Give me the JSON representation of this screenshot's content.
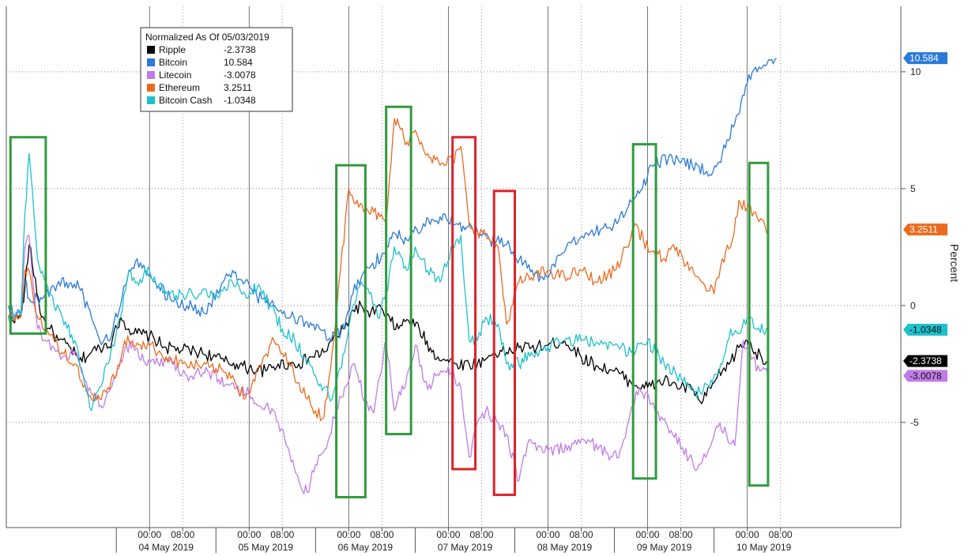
{
  "chart_data": {
    "type": "line",
    "ylabel": "Percent",
    "ylim": [
      -9.5,
      12.8
    ],
    "y_ticks": [
      10,
      5,
      0,
      -5
    ],
    "grid": true,
    "legend": {
      "title": "Normalized As Of 05/03/2019",
      "placement": "top-left"
    },
    "x_tick_labels": [
      "00:00",
      "08:00",
      "00:00",
      "08:00",
      "00:00",
      "08:00",
      "00:00",
      "08:00",
      "00:00",
      "08:00",
      "00:00",
      "08:00",
      "00:00",
      "08:00"
    ],
    "x_tick_hours": [
      24,
      32,
      48,
      56,
      72,
      80,
      96,
      104,
      120,
      128,
      144,
      152,
      168,
      176
    ],
    "x_range_hours": [
      -10.5,
      205
    ],
    "day_labels": [
      {
        "label": "04 May 2019",
        "center_hour": 28
      },
      {
        "label": "05 May 2019",
        "center_hour": 52
      },
      {
        "label": "06 May 2019",
        "center_hour": 76
      },
      {
        "label": "07 May 2019",
        "center_hour": 100
      },
      {
        "label": "08 May 2019",
        "center_hour": 124
      },
      {
        "label": "09 May 2019",
        "center_hour": 148
      },
      {
        "label": "10 May 2019",
        "center_hour": 172
      }
    ],
    "day_boundaries_hours": [
      16,
      40,
      64,
      88,
      112,
      136,
      160
    ],
    "series": [
      {
        "name": "Ripple",
        "value_label": "-2.3738",
        "color": "#000000",
        "last": -2.3738,
        "hours": [
          -10,
          -7,
          -6,
          -5,
          -2,
          0,
          2,
          5,
          7,
          10,
          12,
          15,
          17,
          19,
          21,
          24,
          28,
          32,
          36,
          40,
          42,
          45,
          48,
          52,
          55,
          58,
          60,
          63,
          66,
          68,
          71,
          73,
          75,
          77,
          79,
          81,
          84,
          86,
          89,
          92,
          95,
          98,
          101,
          103,
          105,
          107,
          110,
          113,
          116,
          120,
          124,
          128,
          132,
          136,
          140,
          144,
          148,
          152,
          155,
          157,
          160,
          162,
          164,
          166,
          168,
          170,
          173
        ],
        "values": [
          -0.5,
          -0.5,
          0.8,
          2.6,
          -0.5,
          -1.0,
          -1.5,
          -1.8,
          -2.4,
          -2.0,
          -1.8,
          -1.5,
          -0.5,
          -1.0,
          -1.2,
          -1.3,
          -1.8,
          -1.9,
          -2.0,
          -2.2,
          -2.4,
          -2.5,
          -2.7,
          -2.8,
          -2.5,
          -2.5,
          -2.5,
          -2.2,
          -2.0,
          -1.5,
          -1.0,
          -0.2,
          0.0,
          -0.5,
          0.0,
          -0.5,
          -1.0,
          -0.6,
          -1.0,
          -2.0,
          -2.3,
          -2.5,
          -2.5,
          -2.5,
          -2.3,
          -2.0,
          -2.0,
          -1.8,
          -1.8,
          -1.7,
          -1.5,
          -2.2,
          -2.6,
          -2.8,
          -3.3,
          -3.5,
          -3.2,
          -3.5,
          -3.6,
          -4.2,
          -3.3,
          -2.8,
          -2.4,
          -1.8,
          -1.5,
          -2.0,
          -2.4
        ]
      },
      {
        "name": "Bitcoin",
        "value_label": "10.584",
        "color": "#2a7ad7",
        "last": 10.584,
        "hours": [
          -10,
          -7,
          -6,
          -5,
          -3,
          -1,
          1,
          4,
          7,
          10,
          12,
          14,
          17,
          19,
          21,
          23,
          25,
          29,
          33,
          37,
          41,
          44,
          47,
          49,
          51,
          54,
          58,
          62,
          65,
          67,
          71,
          73,
          75,
          77,
          80,
          83,
          86,
          90,
          94,
          98,
          102,
          106,
          110,
          115,
          119,
          124,
          129,
          133,
          137,
          139,
          142,
          145,
          149,
          152,
          156,
          159,
          162,
          165,
          168,
          170,
          172,
          175
        ],
        "values": [
          0.0,
          -0.4,
          1.0,
          0.3,
          0.3,
          0.5,
          0.8,
          1.0,
          0.8,
          -0.5,
          -1.5,
          -1.5,
          0.0,
          1.5,
          2.0,
          1.5,
          1.0,
          0.3,
          0.0,
          -0.3,
          0.7,
          1.5,
          1.0,
          0.5,
          0.3,
          0.0,
          -0.5,
          -0.7,
          -1.0,
          -1.5,
          -1.0,
          0.5,
          1.2,
          1.6,
          2.2,
          3.1,
          2.8,
          3.5,
          3.8,
          3.5,
          3.2,
          2.8,
          2.6,
          1.6,
          1.1,
          2.3,
          3.1,
          3.3,
          3.6,
          4.1,
          4.8,
          6.0,
          6.3,
          6.1,
          6.0,
          5.6,
          6.5,
          7.8,
          9.5,
          10.2,
          10.3,
          10.6
        ]
      },
      {
        "name": "Litecoin",
        "value_label": "-3.0078",
        "color": "#c07be8",
        "last": -3.0078,
        "hours": [
          -10,
          -7,
          -6,
          -5,
          -3,
          -1,
          1,
          3,
          6,
          8,
          10,
          13,
          17,
          20,
          23,
          28,
          33,
          38,
          43,
          48,
          52,
          55,
          57,
          60,
          62,
          64,
          67,
          69,
          71,
          73,
          76,
          78,
          81,
          83,
          86,
          88,
          91,
          93,
          96,
          99,
          101,
          103,
          105,
          108,
          110,
          113,
          115,
          118,
          120,
          125,
          130,
          134,
          137,
          139,
          142,
          145,
          150,
          154,
          156,
          158,
          161,
          163,
          165,
          167,
          169,
          171,
          173
        ],
        "values": [
          -0.5,
          -0.5,
          2.5,
          3.0,
          -1.0,
          -1.5,
          -1.8,
          -2.2,
          -2.0,
          -3.0,
          -3.8,
          -4.3,
          -2.3,
          -1.6,
          -2.5,
          -2.3,
          -3.0,
          -2.8,
          -3.4,
          -3.8,
          -4.3,
          -5.0,
          -6.0,
          -7.5,
          -8.0,
          -6.8,
          -5.8,
          -4.5,
          -3.5,
          -2.5,
          -4.0,
          -4.6,
          -1.5,
          -4.5,
          -3.0,
          -1.7,
          -3.6,
          -3.0,
          -2.6,
          -3.5,
          -6.5,
          -5.0,
          -4.5,
          -5.0,
          -5.5,
          -7.5,
          -6.0,
          -6.0,
          -6.2,
          -6.0,
          -5.8,
          -6.3,
          -6.5,
          -5.2,
          -3.5,
          -4.2,
          -5.5,
          -6.5,
          -7.0,
          -6.5,
          -5.2,
          -5.5,
          -6.0,
          -1.5,
          -2.3,
          -2.8,
          -3.0
        ]
      },
      {
        "name": "Ethereum",
        "value_label": "3.2511",
        "color": "#ec6a1f",
        "last": 3.2511,
        "hours": [
          -10,
          -7,
          -6,
          -5,
          -3,
          -1,
          1,
          3,
          6,
          8,
          10,
          12,
          14,
          16,
          18,
          21,
          24,
          28,
          32,
          36,
          40,
          44,
          47,
          51,
          54,
          58,
          60,
          62,
          64,
          66,
          68,
          70,
          72,
          74,
          76,
          78,
          81,
          83,
          86,
          88,
          91,
          94,
          97,
          99,
          101,
          103,
          105,
          108,
          110,
          113,
          116,
          120,
          124,
          128,
          132,
          136,
          139,
          141,
          143,
          145,
          148,
          151,
          154,
          157,
          160,
          162,
          164,
          166,
          168,
          170,
          172,
          173
        ],
        "values": [
          -0.5,
          -0.5,
          1.5,
          1.5,
          -0.5,
          -1.0,
          -1.5,
          -2.0,
          -2.5,
          -3.5,
          -4.0,
          -4.0,
          -3.5,
          -3.0,
          -1.5,
          -1.6,
          -1.7,
          -2.2,
          -2.5,
          -2.6,
          -2.7,
          -3.0,
          -4.0,
          -2.5,
          -1.5,
          -2.6,
          -3.3,
          -4.0,
          -4.5,
          -4.8,
          -2.0,
          1.5,
          5.0,
          4.5,
          4.2,
          4.0,
          3.5,
          8.0,
          7.0,
          7.5,
          6.5,
          6.0,
          6.2,
          6.8,
          3.5,
          3.2,
          3.0,
          2.5,
          -0.8,
          1.0,
          1.2,
          1.5,
          1.2,
          1.5,
          1.0,
          1.5,
          2.5,
          3.5,
          2.8,
          2.3,
          2.0,
          2.5,
          1.5,
          1.0,
          0.5,
          2.0,
          2.5,
          4.5,
          4.2,
          4.0,
          3.6,
          3.25
        ]
      },
      {
        "name": "Bitcoin Cash",
        "value_label": "-1.0348",
        "color": "#1ec0cc",
        "last": -1.0348,
        "hours": [
          -10,
          -7,
          -6,
          -5,
          -3,
          -1,
          1,
          3,
          6,
          8,
          10,
          12,
          14,
          17,
          19,
          21,
          24,
          28,
          32,
          36,
          40,
          44,
          47,
          50,
          53,
          56,
          59,
          62,
          64,
          66,
          68,
          71,
          73,
          75,
          77,
          79,
          81,
          83,
          86,
          88,
          91,
          94,
          97,
          99,
          101,
          103,
          105,
          108,
          110,
          113,
          116,
          120,
          124,
          128,
          132,
          136,
          140,
          144,
          148,
          151,
          154,
          157,
          160,
          162,
          164,
          166,
          168,
          170,
          173
        ],
        "values": [
          -0.5,
          -0.4,
          4.0,
          6.5,
          2.0,
          1.0,
          0.0,
          -0.5,
          -1.5,
          -3.0,
          -4.5,
          -3.5,
          -2.5,
          -0.5,
          1.5,
          1.0,
          1.5,
          0.5,
          0.5,
          0.5,
          0.5,
          1.0,
          0.5,
          0.8,
          0.0,
          -1.0,
          -1.5,
          -2.5,
          -3.0,
          -3.5,
          -4.0,
          -2.0,
          0.0,
          1.0,
          0.5,
          -0.5,
          0.5,
          2.5,
          1.5,
          2.5,
          1.5,
          1.0,
          2.5,
          3.0,
          -1.5,
          -1.5,
          -0.5,
          -0.8,
          -2.5,
          -2.5,
          -2.0,
          -1.8,
          -1.5,
          -1.5,
          -1.6,
          -1.7,
          -2.0,
          -1.5,
          -2.5,
          -3.0,
          -3.5,
          -3.8,
          -3.0,
          -2.5,
          -1.0,
          -1.2,
          -0.5,
          -1.0,
          -1.03
        ]
      }
    ],
    "highlight_boxes": [
      {
        "color": "green",
        "hour_start": -9.5,
        "hour_end": -1.0,
        "top": 7.2,
        "bottom": -1.2
      },
      {
        "color": "green",
        "hour_start": 69.0,
        "hour_end": 76.0,
        "top": 6.0,
        "bottom": -8.2
      },
      {
        "color": "green",
        "hour_start": 81.0,
        "hour_end": 87.0,
        "top": 8.5,
        "bottom": -5.5
      },
      {
        "color": "red",
        "hour_start": 97.0,
        "hour_end": 102.5,
        "top": 7.2,
        "bottom": -7.0
      },
      {
        "color": "red",
        "hour_start": 107.0,
        "hour_end": 112.0,
        "top": 4.9,
        "bottom": -8.1
      },
      {
        "color": "green",
        "hour_start": 140.5,
        "hour_end": 146.0,
        "top": 6.9,
        "bottom": -7.4
      },
      {
        "color": "green",
        "hour_start": 168.5,
        "hour_end": 173.0,
        "top": 6.1,
        "bottom": -7.7
      }
    ]
  }
}
